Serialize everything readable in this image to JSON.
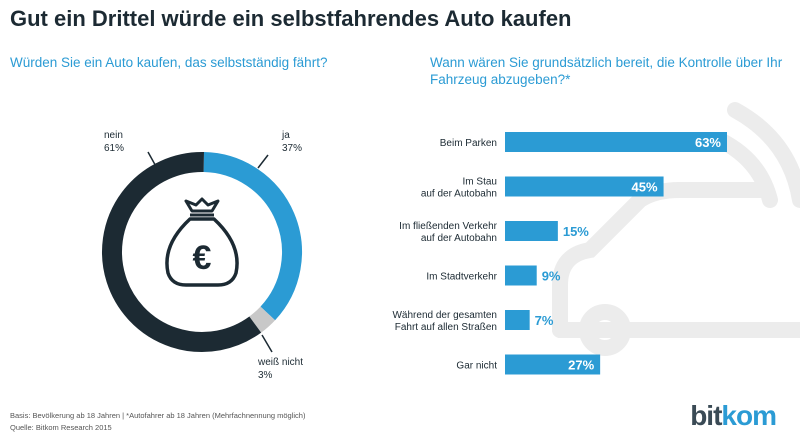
{
  "title": "Gut ein Drittel würde ein selbstfahrendes Auto kaufen",
  "colors": {
    "accent": "#2b9bd4",
    "dark": "#1c2a33",
    "grey": "#c8c8c8",
    "bg_icon": "#ebebeb"
  },
  "chart_data": [
    {
      "type": "pie",
      "title": "Würden Sie ein Auto kaufen, das selbstständig fährt?",
      "slices": [
        {
          "label": "ja",
          "value": 37,
          "display": "37%",
          "color": "#2b9bd4"
        },
        {
          "label": "weiß nicht",
          "value": 3,
          "display": "3%",
          "color": "#c8c8c8"
        },
        {
          "label": "nein",
          "value": 61,
          "display": "61%",
          "color": "#1c2a33"
        }
      ],
      "center_icon": "euro-money-bag-icon"
    },
    {
      "type": "bar",
      "orientation": "horizontal",
      "title": "Wann wären Sie grundsätzlich bereit, die Kontrolle über Ihr Fahrzeug abzugeben?*",
      "categories": [
        [
          "Beim Parken"
        ],
        [
          "Im Stau",
          "auf der Autobahn"
        ],
        [
          "Im fließenden Verkehr",
          "auf der Autobahn"
        ],
        [
          "Im Stadtverkehr"
        ],
        [
          "Während der gesamten",
          "Fahrt auf allen Straßen"
        ],
        [
          "Gar nicht"
        ]
      ],
      "values": [
        63,
        45,
        15,
        9,
        7,
        27
      ],
      "value_labels": [
        "63%",
        "45%",
        "15%",
        "9%",
        "7%",
        "27%"
      ],
      "xlim": [
        0,
        63
      ],
      "background_icon": "car-wifi-icon"
    }
  ],
  "footer": {
    "line1": "Basis: Bevölkerung ab 18 Jahren | *Autofahrer ab 18 Jahren (Mehrfachnennung möglich)",
    "line2": "Quelle: Bitkom Research 2015"
  },
  "logo": {
    "part1": "bit",
    "part2": "kom"
  }
}
